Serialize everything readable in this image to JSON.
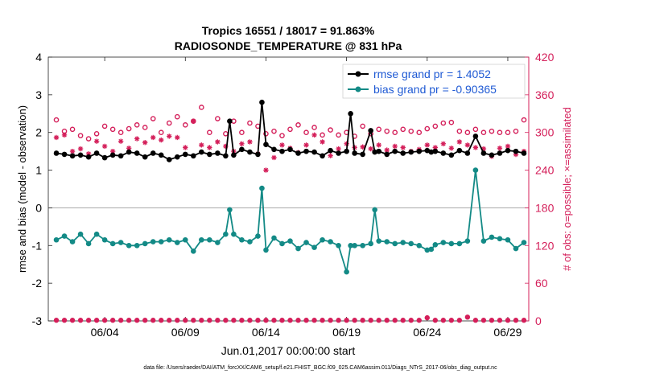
{
  "chart_data": {
    "type": "line",
    "title_line1": "Tropics 16551 / 18017 = 91.863%",
    "title_line2": "RADIOSONDE_TEMPERATURE @ 831 hPa",
    "ylabel_left": "rmse and bias (model - observation)",
    "ylabel_right": "# of obs: o=possible; ×=assimilated",
    "xlabel": "Jun.01,2017 00:00:00 start",
    "footnote": "data file: /Users/raeder/DAI/ATM_forcXX/CAM6_setup/f.e21.FHIST_BGC.f09_025.CAM6assim.011/Diags_NTrS_2017-06/obs_diag_output.nc",
    "ylim_left": [
      -3,
      4
    ],
    "ylim_right": [
      0,
      420
    ],
    "xlim": [
      0.5,
      30.3
    ],
    "yticks_left": [
      "-3",
      "-2",
      "-1",
      "0",
      "1",
      "2",
      "3",
      "4"
    ],
    "yticks_right": [
      "0",
      "60",
      "120",
      "180",
      "240",
      "300",
      "360",
      "420"
    ],
    "xticks": [
      {
        "value": 4,
        "label": "06/04"
      },
      {
        "value": 9,
        "label": "06/09"
      },
      {
        "value": 14,
        "label": "06/14"
      },
      {
        "value": 19,
        "label": "06/19"
      },
      {
        "value": 24,
        "label": "06/24"
      },
      {
        "value": 29,
        "label": "06/29"
      }
    ],
    "legend": [
      {
        "name": "rmse grand pr = 1.4052",
        "color": "#000000"
      },
      {
        "name": "bias grand pr = -0.90365",
        "color": "#138a86"
      }
    ],
    "colors": {
      "rmse": "#000000",
      "bias": "#138a86",
      "obs": "#d41f5a",
      "zero_line": "#b0b0b0"
    },
    "series_rmse": {
      "x": [
        1,
        1.5,
        2,
        2.5,
        3,
        3.5,
        4,
        4.5,
        5,
        5.5,
        6,
        6.5,
        7,
        7.5,
        8,
        8.5,
        9,
        9.5,
        10,
        10.5,
        11,
        11.5,
        11.75,
        12,
        12.5,
        13,
        13.5,
        13.75,
        14,
        14.5,
        15,
        15.5,
        16,
        16.5,
        17,
        17.5,
        18,
        18.5,
        19,
        19.25,
        19.5,
        20,
        20.5,
        20.75,
        21,
        21.5,
        22,
        22.5,
        23,
        23.5,
        24,
        24.25,
        24.5,
        25,
        25.5,
        26,
        26.5,
        27,
        27.5,
        28,
        28.5,
        29,
        29.5,
        30
      ],
      "y": [
        1.45,
        1.42,
        1.38,
        1.4,
        1.35,
        1.45,
        1.33,
        1.4,
        1.38,
        1.48,
        1.45,
        1.35,
        1.45,
        1.4,
        1.28,
        1.35,
        1.42,
        1.38,
        1.48,
        1.42,
        1.45,
        1.38,
        2.3,
        1.4,
        1.55,
        1.48,
        1.42,
        2.8,
        1.68,
        1.55,
        1.5,
        1.55,
        1.45,
        1.5,
        1.48,
        1.38,
        1.52,
        1.45,
        1.5,
        2.5,
        1.45,
        1.42,
        2.05,
        1.48,
        1.5,
        1.42,
        1.5,
        1.45,
        1.48,
        1.5,
        1.52,
        1.48,
        1.5,
        1.45,
        1.4,
        1.52,
        1.45,
        1.9,
        1.45,
        1.4,
        1.45,
        1.52,
        1.5,
        1.45
      ]
    },
    "series_bias": {
      "x": [
        1,
        1.5,
        2,
        2.5,
        3,
        3.5,
        4,
        4.5,
        5,
        5.5,
        6,
        6.5,
        7,
        7.5,
        8,
        8.5,
        9,
        9.5,
        10,
        10.5,
        11,
        11.5,
        11.75,
        12,
        12.5,
        13,
        13.5,
        13.75,
        14,
        14.5,
        15,
        15.5,
        16,
        16.5,
        17,
        17.5,
        18,
        18.5,
        19,
        19.25,
        19.5,
        20,
        20.5,
        20.75,
        21,
        21.5,
        22,
        22.5,
        23,
        23.5,
        24,
        24.25,
        24.5,
        25,
        25.5,
        26,
        26.5,
        27,
        27.5,
        28,
        28.5,
        29,
        29.5,
        30
      ],
      "y": [
        -0.85,
        -0.75,
        -0.9,
        -0.7,
        -0.95,
        -0.7,
        -0.85,
        -0.95,
        -0.92,
        -1.0,
        -1.0,
        -0.95,
        -0.9,
        -0.9,
        -0.85,
        -0.92,
        -0.85,
        -1.15,
        -0.85,
        -0.85,
        -0.92,
        -0.7,
        -0.05,
        -0.7,
        -0.85,
        -0.9,
        -0.75,
        0.52,
        -1.12,
        -0.8,
        -0.95,
        -0.88,
        -1.08,
        -0.92,
        -1.05,
        -0.85,
        -0.9,
        -1.0,
        -1.7,
        -1.0,
        -1.0,
        -1.0,
        -0.95,
        -0.05,
        -0.88,
        -0.9,
        -0.95,
        -0.92,
        -0.95,
        -1.0,
        -1.12,
        -1.1,
        -0.98,
        -0.92,
        -0.95,
        -0.95,
        -0.88,
        1.0,
        -0.88,
        -0.78,
        -0.82,
        -0.85,
        -1.08,
        -0.92
      ]
    },
    "series_obs_possible": {
      "x": [
        1,
        1.5,
        2,
        2.5,
        3,
        3.5,
        4,
        4.5,
        5,
        5.5,
        6,
        6.5,
        7,
        7.5,
        8,
        8.5,
        9,
        9.5,
        10,
        10.5,
        11,
        11.5,
        12,
        12.5,
        13,
        13.5,
        14,
        14.5,
        15,
        15.5,
        16,
        16.5,
        17,
        17.5,
        18,
        18.5,
        19,
        19.5,
        20,
        20.5,
        21,
        21.5,
        22,
        22.5,
        23,
        23.5,
        24,
        24.5,
        25,
        25.5,
        26,
        26.5,
        27,
        27.5,
        28,
        28.5,
        29,
        29.5,
        30
      ],
      "y": [
        320,
        302,
        305,
        295,
        290,
        298,
        310,
        305,
        300,
        306,
        312,
        308,
        322,
        300,
        315,
        325,
        312,
        318,
        340,
        300,
        322,
        298,
        318,
        300,
        315,
        310,
        298,
        302,
        295,
        305,
        312,
        300,
        308,
        296,
        304,
        296,
        300,
        294,
        310,
        298,
        305,
        302,
        300,
        305,
        302,
        300,
        306,
        310,
        315,
        316,
        302,
        300,
        305,
        300,
        302,
        300,
        300,
        302,
        320
      ]
    },
    "series_obs_assimilated": {
      "x": [
        1,
        1.5,
        2,
        2.5,
        3,
        3.5,
        4,
        4.5,
        5,
        5.5,
        6,
        6.5,
        7,
        7.5,
        8,
        8.5,
        9,
        9.5,
        10,
        10.5,
        11,
        11.5,
        12,
        12.5,
        13,
        13.5,
        14,
        14.5,
        15,
        15.5,
        16,
        16.5,
        17,
        17.5,
        18,
        18.5,
        19,
        19.5,
        20,
        20.5,
        21,
        21.5,
        22,
        22.5,
        23,
        23.5,
        24,
        24.5,
        25,
        25.5,
        26,
        26.5,
        27,
        27.5,
        28,
        28.5,
        29,
        29.5,
        30
      ],
      "y": [
        292,
        296,
        270,
        274,
        266,
        286,
        278,
        270,
        286,
        275,
        290,
        284,
        292,
        288,
        294,
        292,
        276,
        318,
        280,
        276,
        285,
        278,
        270,
        282,
        285,
        266,
        240,
        260,
        280,
        275,
        268,
        280,
        296,
        285,
        263,
        274,
        282,
        276,
        277,
        274,
        280,
        272,
        278,
        276,
        270,
        273,
        280,
        276,
        282,
        275,
        285,
        280,
        276,
        274,
        262,
        275,
        278,
        265,
        270
      ]
    },
    "series_obs_bottom_possible": {
      "x": [
        1,
        1.5,
        2,
        2.5,
        3,
        3.5,
        4,
        4.5,
        5,
        5.5,
        6,
        6.5,
        7,
        7.5,
        8,
        8.5,
        9,
        9.5,
        10,
        10.5,
        11,
        11.5,
        12,
        12.5,
        13,
        13.5,
        14,
        14.5,
        15,
        15.5,
        16,
        16.5,
        17,
        17.5,
        18,
        18.5,
        19,
        19.5,
        20,
        20.5,
        21,
        21.5,
        22,
        22.5,
        23,
        23.5,
        24,
        24.5,
        25,
        25.5,
        26,
        26.5,
        27,
        27.5,
        28,
        28.5,
        29,
        29.5,
        30
      ],
      "y": [
        1,
        1,
        1,
        1,
        1,
        1,
        1,
        1,
        1,
        1,
        1,
        1,
        1,
        1,
        1,
        1,
        1,
        1,
        1,
        1,
        1,
        1,
        1,
        1,
        1,
        1,
        1,
        1,
        1,
        1,
        1,
        1,
        1,
        1,
        1,
        1,
        1,
        1,
        1,
        1,
        1,
        1,
        1,
        1,
        1,
        1,
        5,
        1,
        1,
        1,
        1,
        6,
        1,
        1,
        1,
        1,
        1,
        1,
        1
      ]
    }
  }
}
